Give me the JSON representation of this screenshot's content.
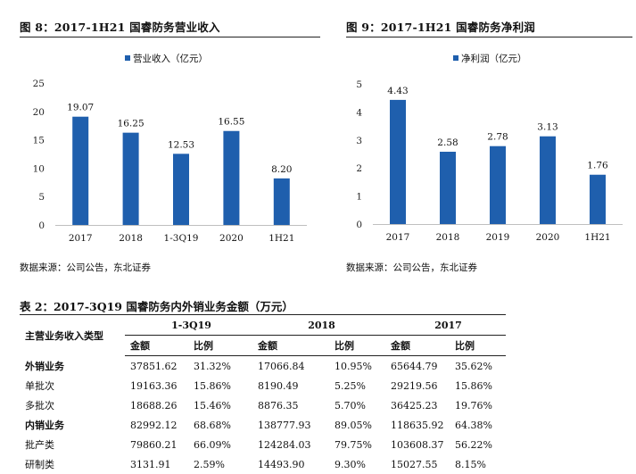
{
  "charts_meta": [
    {
      "title": "图 8：2017-1H21 国睿防务营业收入",
      "source": "数据来源：公司公告，东北证券"
    },
    {
      "title": "图 9：2017-1H21 国睿防务净利润",
      "source": "数据来源：公司公告，东北证券"
    }
  ],
  "colors": {
    "bar": "#1F5FAD",
    "axis": "#BFBFBF"
  },
  "chart_data": [
    {
      "type": "bar",
      "categories": [
        "2017",
        "2018",
        "1-3Q19",
        "2020",
        "1H21"
      ],
      "series": [
        {
          "name": "营业收入（亿元）",
          "values": [
            19.07,
            16.25,
            12.53,
            16.55,
            8.2
          ]
        }
      ],
      "value_labels": [
        "19.07",
        "16.25",
        "12.53",
        "16.55",
        "8.20"
      ],
      "ylim": [
        0,
        25
      ],
      "yticks": [
        "0",
        "5",
        "10",
        "15",
        "20",
        "25"
      ],
      "legend_position": "top-center",
      "grid": false
    },
    {
      "type": "bar",
      "categories": [
        "2017",
        "2018",
        "2019",
        "2020",
        "1H21"
      ],
      "series": [
        {
          "name": "净利润（亿元）",
          "values": [
            4.43,
            2.58,
            2.78,
            3.13,
            1.76
          ]
        }
      ],
      "value_labels": [
        "4.43",
        "2.58",
        "2.78",
        "3.13",
        "1.76"
      ],
      "ylim": [
        0,
        5
      ],
      "yticks": [
        "0",
        "1",
        "2",
        "3",
        "4",
        "5"
      ],
      "legend_position": "top-center",
      "grid": false
    }
  ],
  "table": {
    "title": "表 2：2017-3Q19 国睿防务内外销业务金额（万元）",
    "row_header": "主营业务收入类型",
    "groups": [
      "1-3Q19",
      "2018",
      "2017"
    ],
    "subheaders": [
      "金额",
      "比例",
      "金额",
      "比例",
      "金额",
      "比例"
    ],
    "rows": [
      {
        "label": "外销业务",
        "bold": true,
        "values": [
          "37851.62",
          "31.32%",
          "17066.84",
          "10.95%",
          "65644.79",
          "35.62%"
        ]
      },
      {
        "label": "单批次",
        "bold": false,
        "values": [
          "19163.36",
          "15.86%",
          "8190.49",
          "5.25%",
          "29219.56",
          "15.86%"
        ]
      },
      {
        "label": "多批次",
        "bold": false,
        "values": [
          "18688.26",
          "15.46%",
          "8876.35",
          "5.70%",
          "36425.23",
          "19.76%"
        ]
      },
      {
        "label": "内销业务",
        "bold": true,
        "values": [
          "82992.12",
          "68.68%",
          "138777.93",
          "89.05%",
          "118635.92",
          "64.38%"
        ]
      },
      {
        "label": "批产类",
        "bold": false,
        "values": [
          "79860.21",
          "66.09%",
          "124284.03",
          "79.75%",
          "103608.37",
          "56.22%"
        ]
      },
      {
        "label": "研制类",
        "bold": false,
        "values": [
          "3131.91",
          "2.59%",
          "14493.90",
          "9.30%",
          "15027.55",
          "8.15%"
        ]
      }
    ]
  }
}
